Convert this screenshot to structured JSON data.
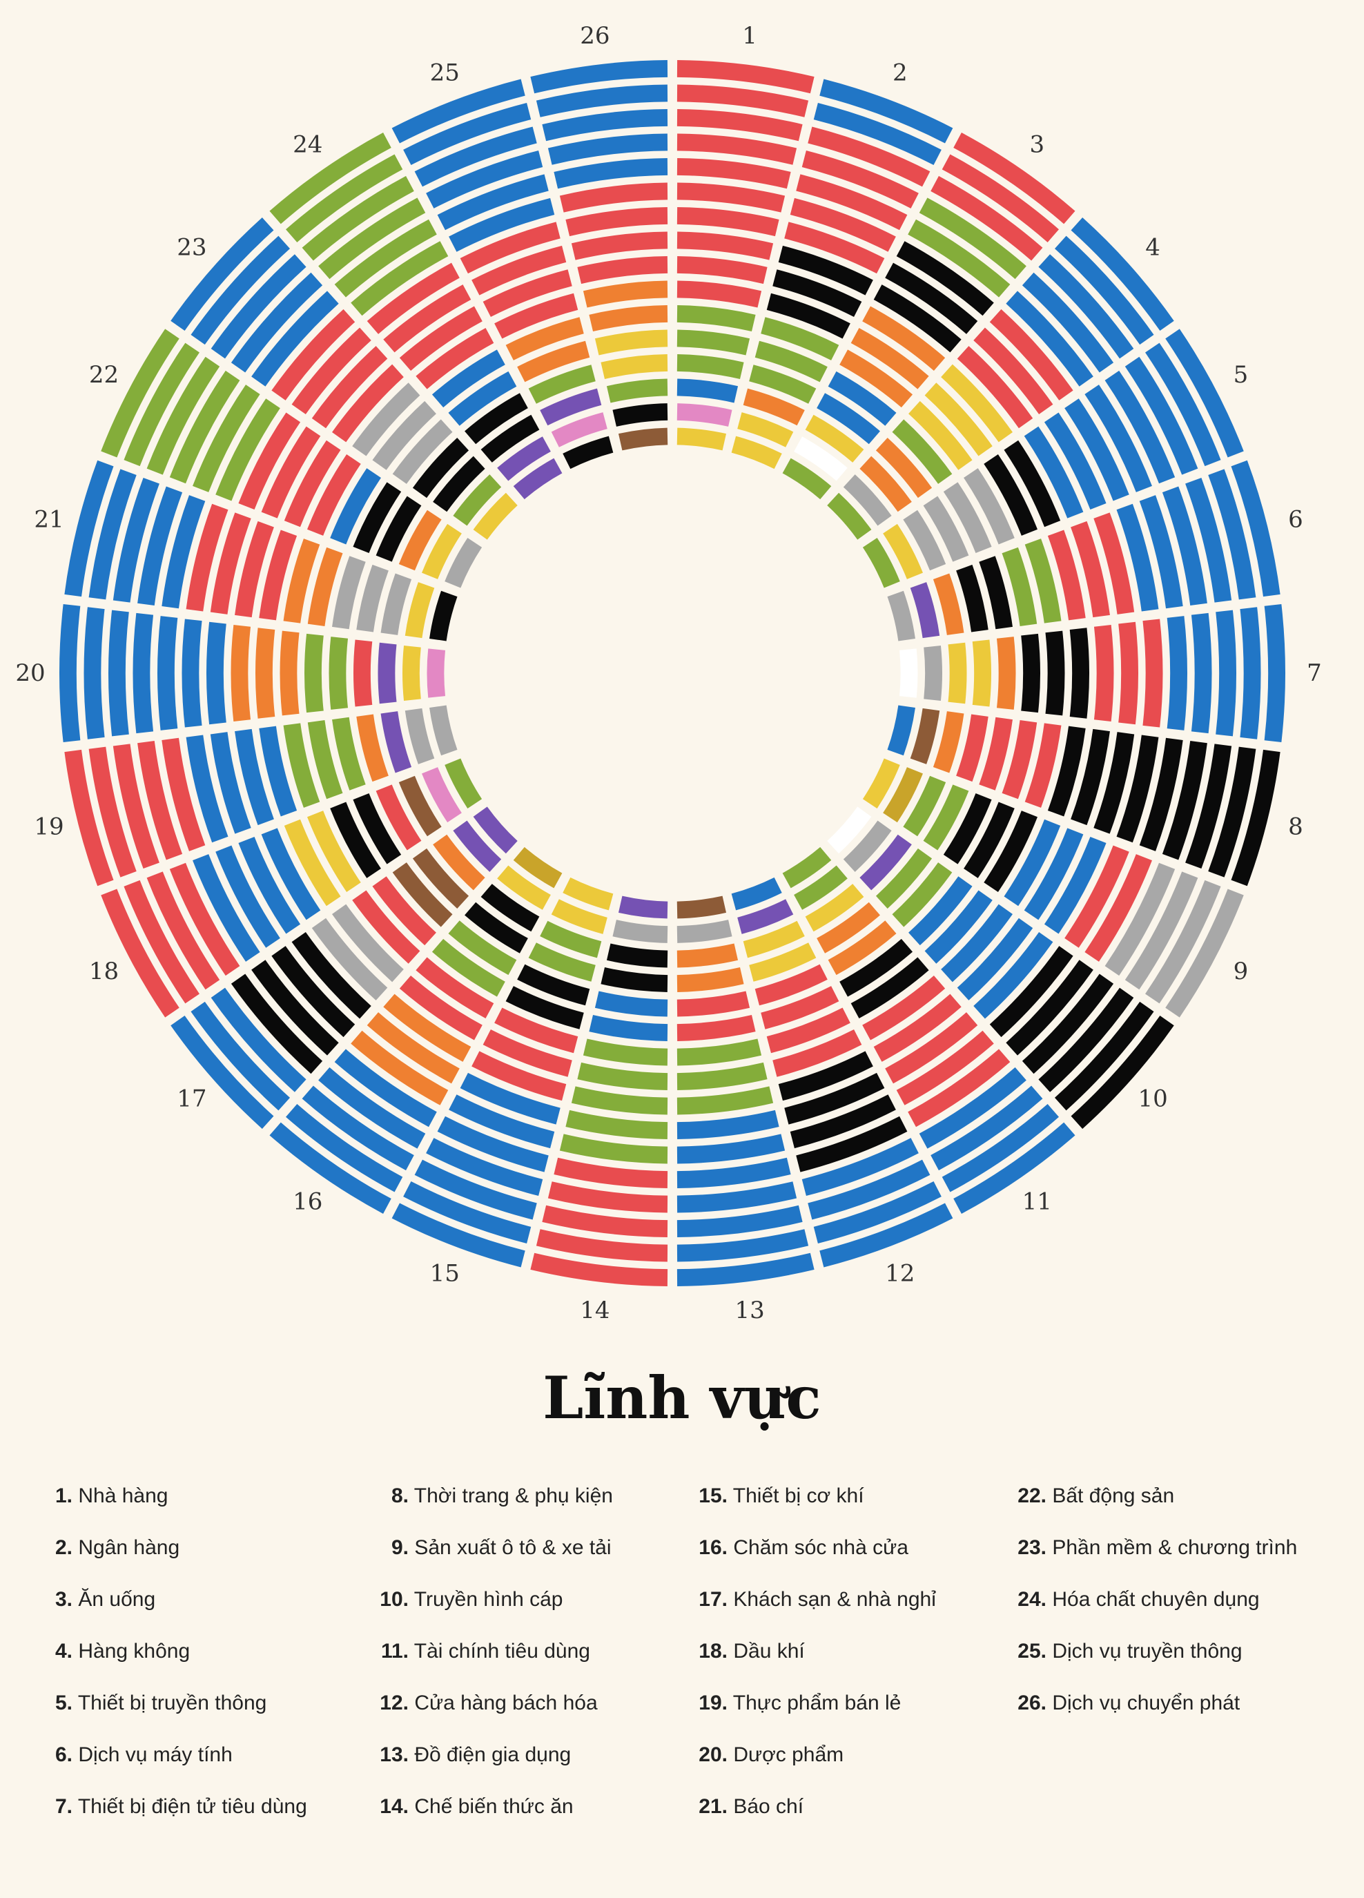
{
  "chart_data": {
    "type": "radial-stacked-bars",
    "title": "Lĩnh vực",
    "sector_labels": [
      "1",
      "2",
      "3",
      "4",
      "5",
      "6",
      "7",
      "8",
      "9",
      "10",
      "11",
      "12",
      "13",
      "14",
      "15",
      "16",
      "17",
      "18",
      "19",
      "20",
      "21",
      "22",
      "23",
      "24",
      "25",
      "26"
    ],
    "rings_per_sector": 16,
    "ring_order": "outermost ring first",
    "color_key": {
      "R": "#e84c4f",
      "B": "#2176c6",
      "G": "#84ad3a",
      "K": "#0a0a0a",
      "O": "#ef8031",
      "Y": "#ecc93a",
      "A": "#a8a8a8",
      "P": "#7552b3",
      "M": "#e388c4",
      "N": "#8d5b37",
      "L": "#c9a42a",
      "W": "#ffffff"
    },
    "sectors": [
      {
        "label": "1",
        "rings": [
          "R",
          "R",
          "R",
          "R",
          "R",
          "R",
          "R",
          "R",
          "R",
          "R",
          "G",
          "G",
          "G",
          "B",
          "M",
          "Y"
        ]
      },
      {
        "label": "2",
        "rings": [
          "B",
          "B",
          "R",
          "R",
          "R",
          "R",
          "R",
          "K",
          "K",
          "K",
          "G",
          "G",
          "G",
          "O",
          "Y",
          "Y"
        ]
      },
      {
        "label": "3",
        "rings": [
          "R",
          "R",
          "R",
          "G",
          "G",
          "K",
          "K",
          "K",
          "O",
          "O",
          "O",
          "B",
          "B",
          "Y",
          "W",
          "G"
        ]
      },
      {
        "label": "4",
        "rings": [
          "B",
          "B",
          "B",
          "B",
          "B",
          "R",
          "R",
          "R",
          "Y",
          "Y",
          "Y",
          "G",
          "O",
          "O",
          "A",
          "G"
        ]
      },
      {
        "label": "5",
        "rings": [
          "B",
          "B",
          "B",
          "B",
          "B",
          "B",
          "B",
          "B",
          "K",
          "K",
          "A",
          "A",
          "A",
          "A",
          "Y",
          "G"
        ]
      },
      {
        "label": "6",
        "rings": [
          "B",
          "B",
          "B",
          "B",
          "B",
          "B",
          "R",
          "R",
          "R",
          "G",
          "G",
          "K",
          "K",
          "O",
          "P",
          "A"
        ]
      },
      {
        "label": "7",
        "rings": [
          "B",
          "B",
          "B",
          "B",
          "B",
          "R",
          "R",
          "R",
          "K",
          "K",
          "K",
          "O",
          "Y",
          "Y",
          "A",
          "W"
        ]
      },
      {
        "label": "8",
        "rings": [
          "K",
          "K",
          "K",
          "K",
          "K",
          "K",
          "K",
          "K",
          "K",
          "R",
          "R",
          "R",
          "R",
          "O",
          "N",
          "B"
        ]
      },
      {
        "label": "9",
        "rings": [
          "A",
          "A",
          "A",
          "A",
          "R",
          "R",
          "B",
          "B",
          "B",
          "K",
          "K",
          "K",
          "G",
          "G",
          "L",
          "Y"
        ]
      },
      {
        "label": "10",
        "rings": [
          "K",
          "K",
          "K",
          "K",
          "K",
          "K",
          "B",
          "B",
          "B",
          "B",
          "B",
          "G",
          "G",
          "P",
          "A",
          "W"
        ]
      },
      {
        "label": "11",
        "rings": [
          "B",
          "B",
          "B",
          "B",
          "R",
          "R",
          "R",
          "R",
          "R",
          "K",
          "K",
          "O",
          "O",
          "Y",
          "G",
          "G"
        ]
      },
      {
        "label": "12",
        "rings": [
          "B",
          "B",
          "B",
          "B",
          "K",
          "K",
          "K",
          "K",
          "R",
          "R",
          "R",
          "R",
          "Y",
          "Y",
          "P",
          "B"
        ]
      },
      {
        "label": "13",
        "rings": [
          "B",
          "B",
          "B",
          "B",
          "B",
          "B",
          "B",
          "G",
          "G",
          "G",
          "R",
          "R",
          "O",
          "O",
          "A",
          "N"
        ]
      },
      {
        "label": "14",
        "rings": [
          "R",
          "R",
          "R",
          "R",
          "R",
          "G",
          "G",
          "G",
          "G",
          "G",
          "B",
          "B",
          "K",
          "K",
          "A",
          "P"
        ]
      },
      {
        "label": "15",
        "rings": [
          "B",
          "B",
          "B",
          "B",
          "B",
          "B",
          "B",
          "R",
          "R",
          "R",
          "K",
          "K",
          "G",
          "G",
          "Y",
          "Y"
        ]
      },
      {
        "label": "16",
        "rings": [
          "B",
          "B",
          "B",
          "B",
          "B",
          "O",
          "O",
          "O",
          "R",
          "R",
          "G",
          "G",
          "K",
          "K",
          "Y",
          "L"
        ]
      },
      {
        "label": "17",
        "rings": [
          "B",
          "B",
          "B",
          "K",
          "K",
          "K",
          "K",
          "A",
          "A",
          "R",
          "R",
          "N",
          "N",
          "O",
          "P",
          "P"
        ]
      },
      {
        "label": "18",
        "rings": [
          "R",
          "R",
          "R",
          "R",
          "B",
          "B",
          "B",
          "B",
          "Y",
          "Y",
          "K",
          "K",
          "R",
          "N",
          "M",
          "G"
        ]
      },
      {
        "label": "19",
        "rings": [
          "R",
          "R",
          "R",
          "R",
          "R",
          "B",
          "B",
          "B",
          "B",
          "G",
          "G",
          "G",
          "O",
          "P",
          "A",
          "A"
        ]
      },
      {
        "label": "20",
        "rings": [
          "B",
          "B",
          "B",
          "B",
          "B",
          "B",
          "B",
          "O",
          "O",
          "O",
          "G",
          "G",
          "R",
          "P",
          "Y",
          "M"
        ]
      },
      {
        "label": "21",
        "rings": [
          "B",
          "B",
          "B",
          "B",
          "B",
          "R",
          "R",
          "R",
          "R",
          "O",
          "O",
          "A",
          "A",
          "A",
          "Y",
          "K"
        ]
      },
      {
        "label": "22",
        "rings": [
          "G",
          "G",
          "G",
          "G",
          "G",
          "G",
          "R",
          "R",
          "R",
          "R",
          "B",
          "K",
          "K",
          "O",
          "Y",
          "A"
        ]
      },
      {
        "label": "23",
        "rings": [
          "B",
          "B",
          "B",
          "B",
          "B",
          "R",
          "R",
          "R",
          "R",
          "A",
          "A",
          "A",
          "K",
          "K",
          "G",
          "Y"
        ]
      },
      {
        "label": "24",
        "rings": [
          "G",
          "G",
          "G",
          "G",
          "G",
          "G",
          "R",
          "R",
          "R",
          "R",
          "B",
          "B",
          "K",
          "K",
          "P",
          "P"
        ]
      },
      {
        "label": "25",
        "rings": [
          "B",
          "B",
          "B",
          "B",
          "B",
          "B",
          "R",
          "R",
          "R",
          "R",
          "O",
          "O",
          "G",
          "P",
          "M",
          "K"
        ]
      },
      {
        "label": "26",
        "rings": [
          "B",
          "B",
          "B",
          "B",
          "B",
          "R",
          "R",
          "R",
          "R",
          "O",
          "O",
          "Y",
          "Y",
          "G",
          "K",
          "N"
        ]
      }
    ]
  },
  "legend": {
    "title": "Lĩnh vực",
    "items": [
      {
        "num": "1.",
        "label": "Nhà hàng"
      },
      {
        "num": "2.",
        "label": "Ngân hàng"
      },
      {
        "num": "3.",
        "label": "Ăn uống"
      },
      {
        "num": "4.",
        "label": "Hàng không"
      },
      {
        "num": "5.",
        "label": "Thiết bị truyền thông"
      },
      {
        "num": "6.",
        "label": "Dịch vụ máy tính"
      },
      {
        "num": "7.",
        "label": "Thiết bị điện tử tiêu dùng"
      },
      {
        "num": "8.",
        "label": "Thời trang & phụ kiện"
      },
      {
        "num": "9.",
        "label": "Sản xuất ô tô & xe tải"
      },
      {
        "num": "10.",
        "label": "Truyền hình cáp"
      },
      {
        "num": "11.",
        "label": "Tài chính tiêu dùng"
      },
      {
        "num": "12.",
        "label": "Cửa hàng bách hóa"
      },
      {
        "num": "13.",
        "label": "Đồ điện gia dụng"
      },
      {
        "num": "14.",
        "label": "Chế biến thức ăn"
      },
      {
        "num": "15.",
        "label": "Thiết bị cơ khí"
      },
      {
        "num": "16.",
        "label": "Chăm sóc nhà cửa"
      },
      {
        "num": "17.",
        "label": "Khách sạn & nhà nghỉ"
      },
      {
        "num": "18.",
        "label": "Dầu khí"
      },
      {
        "num": "19.",
        "label": "Thực phẩm bán lẻ"
      },
      {
        "num": "20.",
        "label": "Dược phẩm"
      },
      {
        "num": "21.",
        "label": "Báo chí"
      },
      {
        "num": "22.",
        "label": "Bất động sản"
      },
      {
        "num": "23.",
        "label": "Phần mềm & chương trình"
      },
      {
        "num": "24.",
        "label": "Hóa chất chuyên dụng"
      },
      {
        "num": "25.",
        "label": "Dịch vụ truyền thông"
      },
      {
        "num": "26.",
        "label": "Dịch vụ chuyển phát"
      }
    ]
  }
}
